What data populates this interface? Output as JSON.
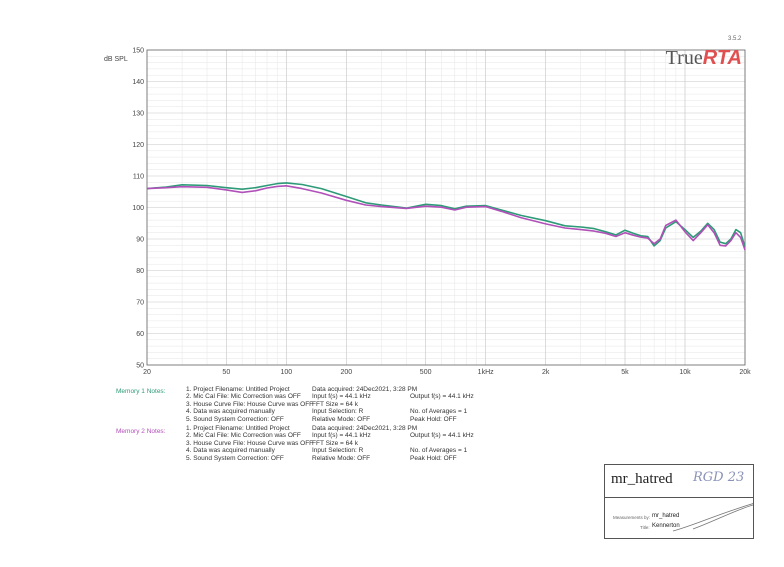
{
  "version": "3.5.2",
  "brand": {
    "part1": "True",
    "part2": "RTA",
    "color1": "#555555",
    "color2": "#e05050"
  },
  "chart_data": {
    "type": "line",
    "ylabel": "dB SPL",
    "ylim": [
      50,
      150
    ],
    "xlim": [
      20,
      20000
    ],
    "xscale": "log",
    "grid": true,
    "yticks": [
      {
        "v": 50,
        "label": "50"
      },
      {
        "v": 60,
        "label": "60"
      },
      {
        "v": 70,
        "label": "70"
      },
      {
        "v": 80,
        "label": "80"
      },
      {
        "v": 90,
        "label": "90"
      },
      {
        "v": 100,
        "label": "100"
      },
      {
        "v": 110,
        "label": "110"
      },
      {
        "v": 120,
        "label": "120"
      },
      {
        "v": 130,
        "label": "130"
      },
      {
        "v": 140,
        "label": "140"
      },
      {
        "v": 150,
        "label": "150"
      }
    ],
    "xticks": [
      {
        "v": 20,
        "label": "20"
      },
      {
        "v": 50,
        "label": "50"
      },
      {
        "v": 100,
        "label": "100"
      },
      {
        "v": 200,
        "label": "200"
      },
      {
        "v": 500,
        "label": "500"
      },
      {
        "v": 1000,
        "label": "1kHz"
      },
      {
        "v": 2000,
        "label": "2k"
      },
      {
        "v": 5000,
        "label": "5k"
      },
      {
        "v": 10000,
        "label": "10k"
      },
      {
        "v": 20000,
        "label": "20k"
      }
    ],
    "series": [
      {
        "name": "Memory 1",
        "color": "#2e9a78",
        "points": [
          [
            20,
            106
          ],
          [
            25,
            106.5
          ],
          [
            30,
            107.2
          ],
          [
            40,
            107
          ],
          [
            50,
            106.3
          ],
          [
            60,
            105.8
          ],
          [
            70,
            106.3
          ],
          [
            80,
            107
          ],
          [
            90,
            107.6
          ],
          [
            100,
            107.8
          ],
          [
            120,
            107.3
          ],
          [
            150,
            106
          ],
          [
            200,
            103.5
          ],
          [
            250,
            101.5
          ],
          [
            300,
            100.8
          ],
          [
            400,
            99.8
          ],
          [
            500,
            101
          ],
          [
            600,
            100.6
          ],
          [
            700,
            99.6
          ],
          [
            800,
            100.4
          ],
          [
            1000,
            100.6
          ],
          [
            1200,
            99.2
          ],
          [
            1500,
            97.5
          ],
          [
            2000,
            95.8
          ],
          [
            2500,
            94.2
          ],
          [
            3000,
            93.8
          ],
          [
            3500,
            93.3
          ],
          [
            4000,
            92.3
          ],
          [
            4500,
            91.3
          ],
          [
            5000,
            92.8
          ],
          [
            5500,
            91.8
          ],
          [
            6000,
            91
          ],
          [
            6500,
            90.8
          ],
          [
            7000,
            87.8
          ],
          [
            7500,
            89.5
          ],
          [
            8000,
            93.5
          ],
          [
            9000,
            95.5
          ],
          [
            10000,
            93
          ],
          [
            11000,
            90.5
          ],
          [
            12000,
            92.5
          ],
          [
            13000,
            95
          ],
          [
            14000,
            93
          ],
          [
            15000,
            89
          ],
          [
            16000,
            88.5
          ],
          [
            17000,
            90
          ],
          [
            18000,
            93
          ],
          [
            19000,
            92
          ],
          [
            20000,
            87.5
          ]
        ]
      },
      {
        "name": "Memory 2",
        "color": "#b050b8",
        "points": [
          [
            20,
            106
          ],
          [
            25,
            106.3
          ],
          [
            30,
            106.6
          ],
          [
            40,
            106.4
          ],
          [
            50,
            105.6
          ],
          [
            60,
            104.8
          ],
          [
            70,
            105.3
          ],
          [
            80,
            106.2
          ],
          [
            90,
            106.7
          ],
          [
            100,
            106.9
          ],
          [
            120,
            106
          ],
          [
            150,
            104.6
          ],
          [
            200,
            102.3
          ],
          [
            250,
            100.8
          ],
          [
            300,
            100.3
          ],
          [
            400,
            99.7
          ],
          [
            500,
            100.4
          ],
          [
            600,
            100.1
          ],
          [
            700,
            99.2
          ],
          [
            800,
            100.1
          ],
          [
            1000,
            100.3
          ],
          [
            1200,
            98.8
          ],
          [
            1500,
            96.8
          ],
          [
            2000,
            94.8
          ],
          [
            2500,
            93.5
          ],
          [
            3000,
            93
          ],
          [
            3500,
            92.5
          ],
          [
            4000,
            91.8
          ],
          [
            4500,
            90.8
          ],
          [
            5000,
            92
          ],
          [
            5500,
            91.2
          ],
          [
            6000,
            90.6
          ],
          [
            6500,
            90.3
          ],
          [
            7000,
            88.5
          ],
          [
            7500,
            90
          ],
          [
            8000,
            94.3
          ],
          [
            9000,
            96
          ],
          [
            10000,
            92.3
          ],
          [
            11000,
            89.5
          ],
          [
            12000,
            92
          ],
          [
            13000,
            94.5
          ],
          [
            14000,
            92
          ],
          [
            15000,
            88
          ],
          [
            16000,
            87.8
          ],
          [
            17000,
            89.5
          ],
          [
            18000,
            92
          ],
          [
            19000,
            90.5
          ],
          [
            20000,
            86.5
          ]
        ]
      }
    ]
  },
  "notes": {
    "memory1": {
      "label": "Memory 1 Notes:",
      "label_color": "#2e9a78",
      "lines": [
        {
          "left": "1. Project Filename: Untitled Project",
          "mid": "Data acquired: 24Dec2021, 3:28 PM",
          "right": ""
        },
        {
          "left": "2. Mic Cal File: Mic Correction was OFF",
          "mid": "Input f(s) = 44.1 kHz",
          "right": "Output f(s) = 44.1 kHz"
        },
        {
          "left": "3. House Curve File: House Curve was OFF",
          "mid": "FFT Size = 64 k",
          "right": ""
        },
        {
          "left": "4. Data was acquired manually",
          "mid": "Input Selection: R",
          "right": "No. of Averages = 1"
        },
        {
          "left": "5. Sound System Correction: OFF",
          "mid": "Relative Mode: OFF",
          "right": "Peak Hold: OFF"
        }
      ]
    },
    "memory2": {
      "label": "Memory 2 Notes:",
      "label_color": "#b050b8",
      "lines": [
        {
          "left": "1. Project Filename: Untitled Project",
          "mid": "Data acquired: 24Dec2021, 3:28 PM",
          "right": ""
        },
        {
          "left": "2. Mic Cal File: Mic Correction was OFF",
          "mid": "Input f(s) = 44.1 kHz",
          "right": "Output f(s) = 44.1 kHz"
        },
        {
          "left": "3. House Curve File: House Curve was OFF",
          "mid": "FFT Size = 64 k",
          "right": ""
        },
        {
          "left": "4. Data was acquired manually",
          "mid": "Input Selection: R",
          "right": "No. of Averages = 1"
        },
        {
          "left": "5. Sound System Correction: OFF",
          "mid": "Relative Mode: OFF",
          "right": "Peak Hold: OFF"
        }
      ]
    }
  },
  "stamp": {
    "name": "mr_hatred",
    "handwritten": "RGD 23",
    "measurements_label": "Measurements by:",
    "measurements_value": "mr_hatred",
    "title_label": "Title:",
    "title_value": "Kennerton"
  }
}
